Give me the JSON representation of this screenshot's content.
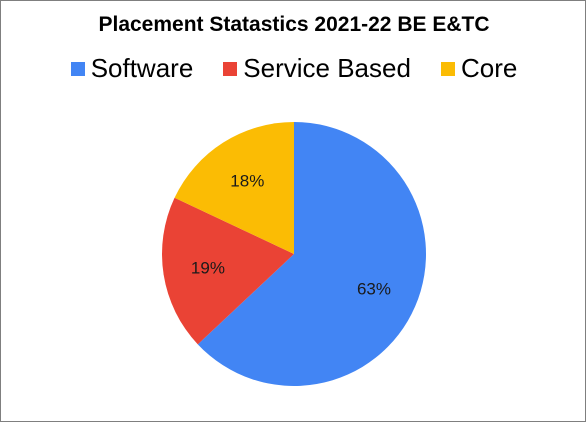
{
  "chart_data": {
    "type": "pie",
    "title": "Placement Statastics 2021-22  BE E&TC",
    "legend_position": "top",
    "slices": [
      {
        "label": "Software",
        "value": 63,
        "display": "63%",
        "color": "#4285f4"
      },
      {
        "label": "Service Based",
        "value": 19,
        "display": "19%",
        "color": "#ea4335"
      },
      {
        "label": "Core",
        "value": 18,
        "display": "18%",
        "color": "#fbbc04"
      }
    ]
  }
}
